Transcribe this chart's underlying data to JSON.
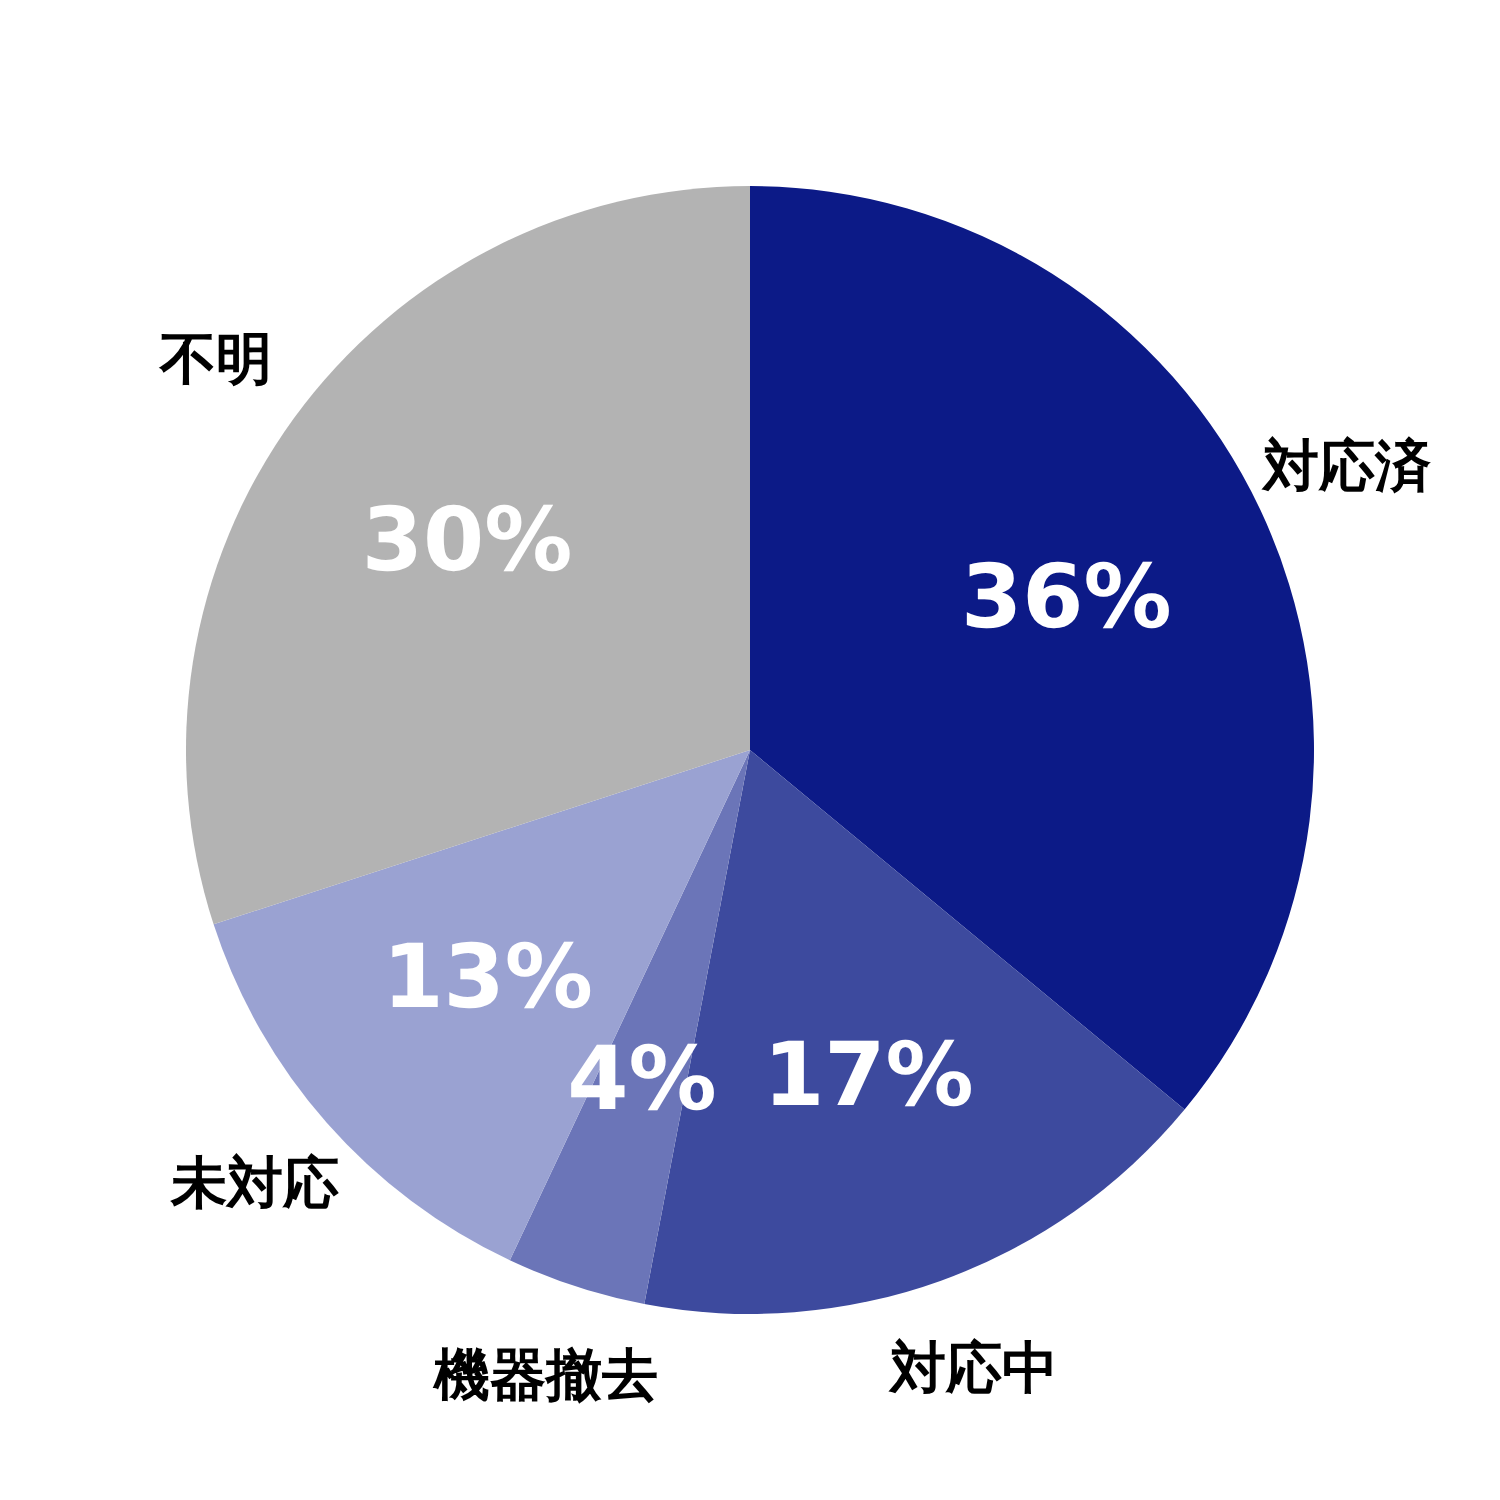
{
  "chart_data": {
    "type": "pie",
    "categories": [
      "対応済",
      "対応中",
      "機器撤去",
      "未対応",
      "不明"
    ],
    "values": [
      36,
      17,
      4,
      13,
      30
    ],
    "colors": [
      "#0c1a87",
      "#3d4a9e",
      "#6b75b8",
      "#9aa2d2",
      "#b3b3b3"
    ],
    "value_labels": [
      "36%",
      "17%",
      "4%",
      "13%",
      "30%"
    ],
    "legend": false
  }
}
